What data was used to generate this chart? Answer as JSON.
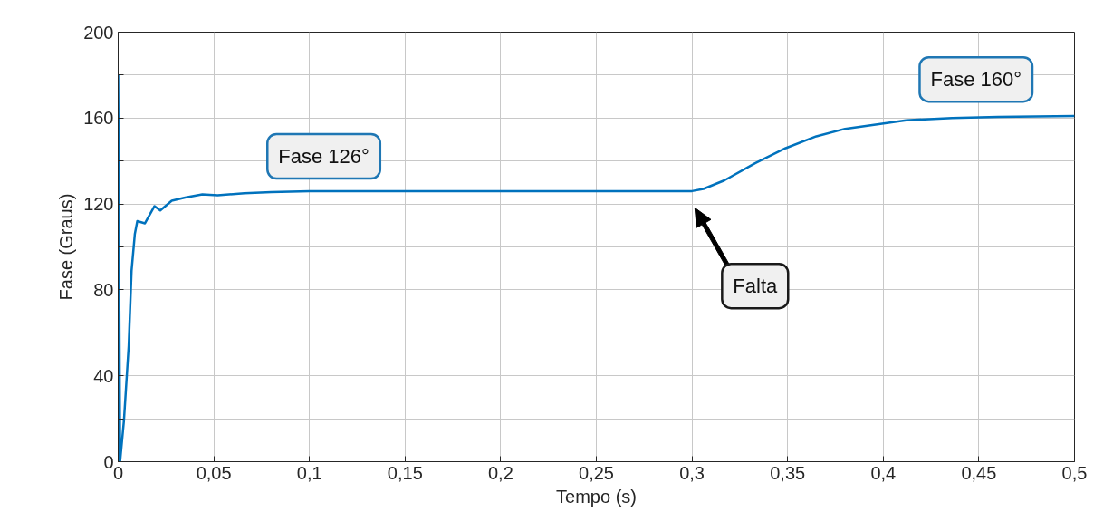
{
  "chart_data": {
    "type": "line",
    "xlabel": "Tempo (s)",
    "ylabel": "Fase (Graus)",
    "x": [
      0,
      0,
      0.001,
      0.003,
      0.0055,
      0.007,
      0.0087,
      0.01,
      0.014,
      0.019,
      0.022,
      0.028,
      0.035,
      0.044,
      0.052,
      0.066,
      0.08,
      0.1,
      0.15,
      0.2,
      0.25,
      0.3,
      0.306,
      0.317,
      0.333,
      0.349,
      0.365,
      0.38,
      0.396,
      0.412,
      0.436,
      0.46,
      0.5
    ],
    "series": [
      {
        "color": "#0072bd",
        "values": [
          0,
          180,
          0,
          19,
          54,
          89,
          106,
          112,
          111,
          119,
          117,
          121.5,
          123,
          124.5,
          124,
          125,
          125.5,
          126,
          126,
          126,
          126,
          126,
          127,
          131,
          139,
          146,
          151.5,
          155,
          157,
          159,
          160,
          160.5,
          161
        ]
      }
    ],
    "xlim": [
      0,
      0.5
    ],
    "ylim": [
      0,
      200
    ],
    "xticks": [
      0,
      {
        "value": 0.05,
        "label": "0,05"
      },
      {
        "value": 0.1,
        "label": "0,1"
      },
      {
        "value": 0.15,
        "label": "0,15"
      },
      {
        "value": 0.2,
        "label": "0,2"
      },
      {
        "value": 0.25,
        "label": "0,25"
      },
      {
        "value": 0.3,
        "label": "0,3"
      },
      {
        "value": 0.35,
        "label": "0,35"
      },
      {
        "value": 0.4,
        "label": "0,4"
      },
      {
        "value": 0.45,
        "label": "0,45"
      },
      {
        "value": 0.5,
        "label": "0,5"
      }
    ],
    "yticks": [
      0,
      {
        "value": 20,
        "label": null
      },
      40,
      {
        "value": 60,
        "label": null
      },
      80,
      {
        "value": 100,
        "label": null
      },
      120,
      {
        "value": 140,
        "label": null
      },
      160,
      {
        "value": 180,
        "label": null
      },
      200
    ],
    "grid": true,
    "annotations": [
      "Fase 126°",
      "Fase 160°",
      "Falta"
    ]
  }
}
